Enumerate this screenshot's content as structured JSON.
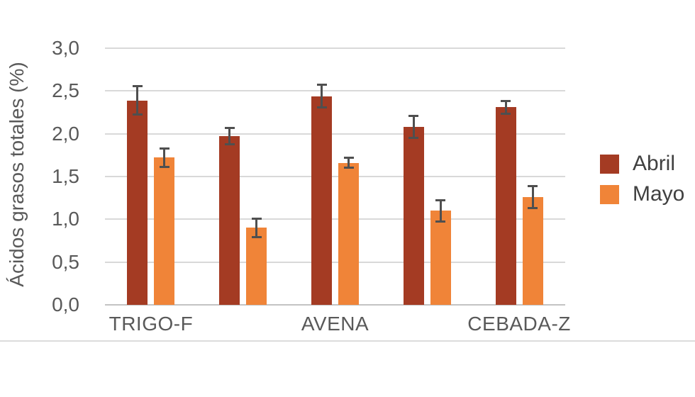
{
  "page": {
    "background": "#ffffff",
    "divider_color": "#dcdcdc"
  },
  "colors": {
    "axis_text": "#595959",
    "legend_text": "#404040",
    "gridline": "#d9d9d9",
    "axis_line": "#c3c3c3",
    "error_bar": "#4f4f4f",
    "abril": "#a43b23",
    "mayo": "#f08438"
  },
  "chart_data": {
    "type": "bar",
    "title": "",
    "xlabel": "",
    "ylabel": "Ácidos grasos totales (%)",
    "ylim": [
      0,
      3.0
    ],
    "ytick_step": 0.5,
    "ytick_labels": [
      "0,0",
      "0,5",
      "1,0",
      "1,5",
      "2,0",
      "2,5",
      "3,0"
    ],
    "grid": true,
    "legend_position": "right",
    "categories": [
      "TRIGO-F",
      "",
      "AVENA",
      "",
      "CEBADA-Z"
    ],
    "series": [
      {
        "name": "Abril",
        "color": "#a43b23",
        "values": [
          2.39,
          1.97,
          2.44,
          2.08,
          2.31
        ],
        "errors": [
          0.17,
          0.1,
          0.14,
          0.13,
          0.08
        ]
      },
      {
        "name": "Mayo",
        "color": "#f08438",
        "values": [
          1.72,
          0.9,
          1.66,
          1.1,
          1.26
        ],
        "errors": [
          0.11,
          0.11,
          0.06,
          0.13,
          0.13
        ]
      }
    ]
  }
}
